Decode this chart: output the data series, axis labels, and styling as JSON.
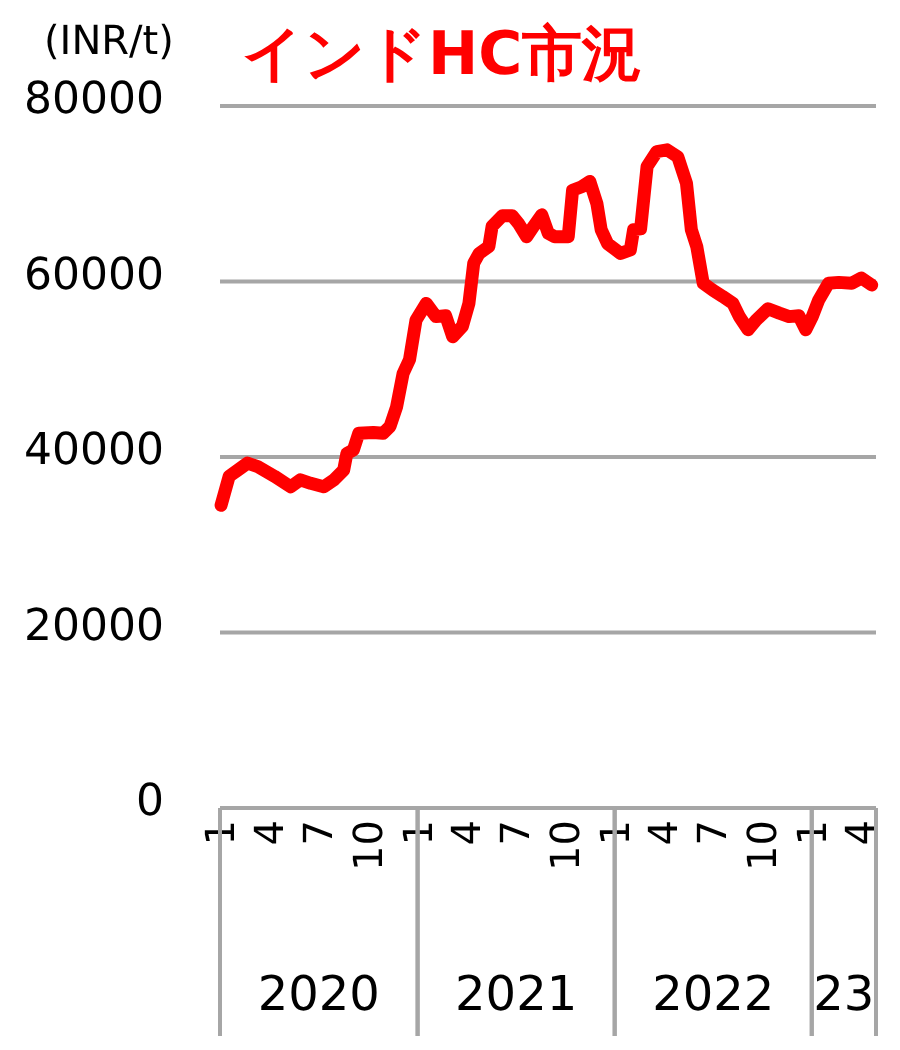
{
  "chart_data": {
    "type": "line",
    "title": "インドHC市況",
    "ylabel": "(INR/t)",
    "x": [
      "2020-01-03",
      "2020-01-18",
      "2020-02-03",
      "2020-02-21",
      "2020-03-11",
      "2020-04-11",
      "2020-05-11",
      "2020-05-29",
      "2020-06-17",
      "2020-07-11",
      "2020-07-30",
      "2020-08-17",
      "2020-08-23",
      "2020-09-04",
      "2020-09-14",
      "2020-10-11",
      "2020-10-29",
      "2020-11-11",
      "2020-11-23",
      "2020-12-05",
      "2020-12-17",
      "2020-12-29",
      "2021-01-17",
      "2021-02-04",
      "2021-02-22",
      "2021-03-07",
      "2021-03-25",
      "2021-04-06",
      "2021-04-15",
      "2021-04-25",
      "2021-05-13",
      "2021-05-19",
      "2021-06-07",
      "2021-06-25",
      "2021-07-07",
      "2021-07-22",
      "2021-08-04",
      "2021-08-19",
      "2021-08-31",
      "2021-09-12",
      "2021-10-07",
      "2021-10-15",
      "2021-11-01",
      "2021-11-16",
      "2021-11-29",
      "2021-12-07",
      "2021-12-19",
      "2022-01-12",
      "2022-01-30",
      "2022-02-05",
      "2022-02-18",
      "2022-03-02",
      "2022-03-20",
      "2022-04-08",
      "2022-04-28",
      "2022-05-14",
      "2022-05-23",
      "2022-06-02",
      "2022-06-14",
      "2022-07-02",
      "2022-07-20",
      "2022-08-08",
      "2022-08-20",
      "2022-09-05",
      "2022-09-20",
      "2022-10-12",
      "2022-11-02",
      "2022-11-20",
      "2022-12-08",
      "2022-12-21",
      "2023-01-02",
      "2023-01-14",
      "2023-02-01",
      "2023-02-20",
      "2023-03-16",
      "2023-04-03",
      "2023-04-22"
    ],
    "series": [
      {
        "color": "#ff0000",
        "values": [
          34500,
          37800,
          38500,
          39300,
          38900,
          37800,
          36600,
          37400,
          37000,
          36600,
          37400,
          38500,
          40400,
          40800,
          42700,
          42800,
          42700,
          43500,
          45700,
          49500,
          51100,
          55600,
          57500,
          56000,
          56100,
          53700,
          54900,
          57500,
          62100,
          63200,
          64000,
          66300,
          67500,
          67500,
          66600,
          65100,
          66300,
          67600,
          65500,
          65100,
          65100,
          70400,
          70800,
          71400,
          68900,
          65900,
          64300,
          63200,
          63600,
          65900,
          66000,
          73100,
          74800,
          75000,
          74200,
          71200,
          65900,
          64000,
          59800,
          59000,
          58300,
          57500,
          56000,
          54500,
          55600,
          56900,
          56400,
          56000,
          56100,
          54500,
          56000,
          57900,
          59800,
          59900,
          59800,
          60400,
          59600
        ]
      }
    ],
    "xlim": [
      "2020-01-01",
      "2023-04-30"
    ],
    "xticks": [
      {
        "value": "2020-01-01",
        "label": "1"
      },
      {
        "value": "2020-04-01",
        "label": "4"
      },
      {
        "value": "2020-07-01",
        "label": "7"
      },
      {
        "value": "2020-10-01",
        "label": "10"
      },
      {
        "value": "2021-01-01",
        "label": "1"
      },
      {
        "value": "2021-04-01",
        "label": "4"
      },
      {
        "value": "2021-07-01",
        "label": "7"
      },
      {
        "value": "2021-10-01",
        "label": "10"
      },
      {
        "value": "2022-01-01",
        "label": "1"
      },
      {
        "value": "2022-04-01",
        "label": "4"
      },
      {
        "value": "2022-07-01",
        "label": "7"
      },
      {
        "value": "2022-10-01",
        "label": "10"
      },
      {
        "value": "2023-01-01",
        "label": "1"
      },
      {
        "value": "2023-04-01",
        "label": "4"
      }
    ],
    "ylim": [
      0,
      80000
    ],
    "yticks": [
      0,
      20000,
      40000,
      60000,
      80000
    ],
    "grid": "y",
    "annotations": [
      "2020",
      "2021",
      "2022",
      "23"
    ]
  }
}
